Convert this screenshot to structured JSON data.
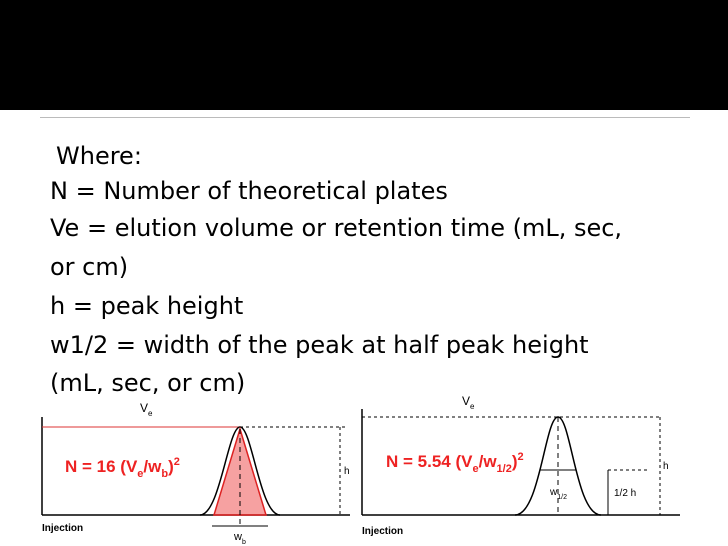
{
  "slide": {
    "lines": [
      "Where:",
      "N = Number of theoretical plates",
      "Ve = elution volume or retention time (mL, sec,",
      "or cm)",
      "h = peak height",
      "w1/2 = width of the peak at half peak height",
      "(mL, sec, or cm)"
    ]
  },
  "left_diagram": {
    "ve": {
      "base": "V",
      "sub": "e"
    },
    "formula": {
      "start": "N = 16 (V",
      "sub1": "e",
      "mid": "/w",
      "sub2": "b",
      "end": ")",
      "sup": "2"
    },
    "h": "h",
    "injection": "Injection",
    "width": {
      "base": "w",
      "sub": "b"
    }
  },
  "right_diagram": {
    "ve": {
      "base": "V",
      "sub": "e"
    },
    "formula": {
      "start": "N = 5.54 (V",
      "sub1": "e",
      "mid": "/w",
      "sub2": "1/2",
      "end": ")",
      "sup": "2"
    },
    "h": "h",
    "injection": "Injection",
    "width": {
      "base": "w",
      "sub": "1/2"
    },
    "half_h": "1/2 h"
  }
}
